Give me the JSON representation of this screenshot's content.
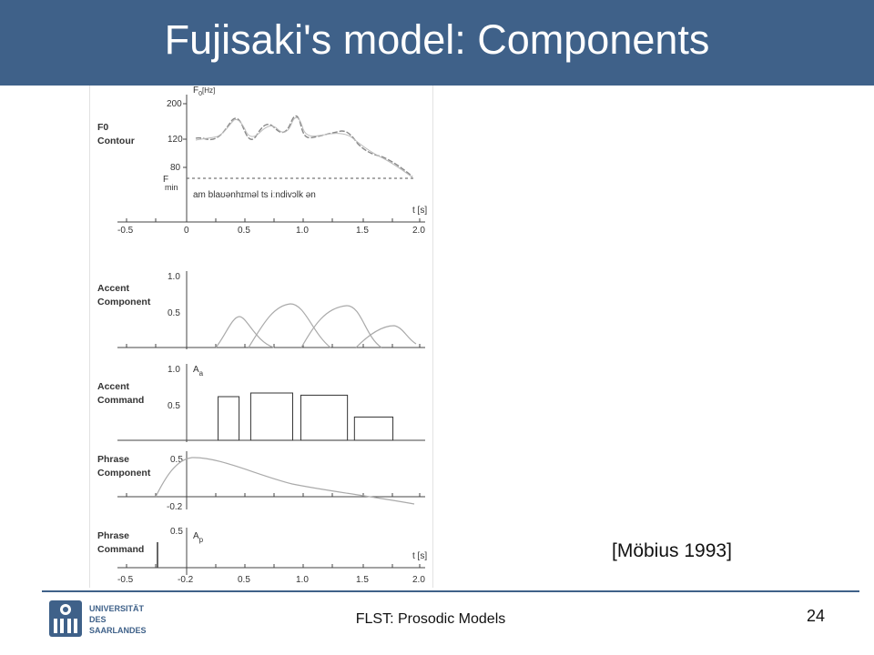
{
  "slide": {
    "title": "Fujisaki's model: Components",
    "citation": "[Möbius 1993]",
    "footer": "FLST: Prosodic Models",
    "page_number": "24",
    "colors": {
      "title_bar": "#3f6189",
      "rule": "#3f6189"
    }
  },
  "logo": {
    "line1": "UNIVERSITÄT",
    "line2": "DES",
    "line3": "SAARLANDES",
    "icon": "university-seal-icon"
  },
  "figure": {
    "panels": {
      "f0": {
        "label_line1": "F0",
        "label_line2": "Contour",
        "y_axis_label": "F",
        "y_axis_sub": "0",
        "y_axis_unit": "[Hz]",
        "y_ticks": [
          "200",
          "120",
          "80"
        ],
        "fmin_label": "F",
        "fmin_sub": "min",
        "transcription": "am blaʊənhɪməl  ts  iːndivɔlk ən"
      },
      "accent_component": {
        "label_line1": "Accent",
        "label_line2": "Component",
        "y_ticks": [
          "1.0",
          "0.5"
        ]
      },
      "accent_command": {
        "label_line1": "Accent",
        "label_line2": "Command",
        "y_ticks": [
          "1.0",
          "0.5"
        ],
        "amp_label": "A",
        "amp_sub": "a"
      },
      "phrase_component": {
        "label_line1": "Phrase",
        "label_line2": "Component",
        "y_ticks": [
          "0.5",
          "-0.2"
        ]
      },
      "phrase_command": {
        "label_line1": "Phrase",
        "label_line2": "Command",
        "y_ticks": [
          "0.5"
        ],
        "amp_label": "A",
        "amp_sub": "p"
      }
    },
    "time_axis_label": "t [s]",
    "x_ticks_top": [
      "-0.5",
      "0",
      "0.5",
      "1.0",
      "1.5",
      "2.0"
    ],
    "x_ticks_bottom": [
      "-0.5",
      "-0.2",
      "0.5",
      "1.0",
      "1.5",
      "2.0"
    ],
    "accent_commands": [
      {
        "onset": 0.27,
        "offset": 0.45,
        "amplitude": 0.6
      },
      {
        "onset": 0.55,
        "offset": 0.91,
        "amplitude": 0.65
      },
      {
        "onset": 0.98,
        "offset": 1.38,
        "amplitude": 0.62
      },
      {
        "onset": 1.44,
        "offset": 1.77,
        "amplitude": 0.32
      }
    ],
    "phrase_command": {
      "time": -0.25,
      "amplitude": 0.35
    }
  }
}
